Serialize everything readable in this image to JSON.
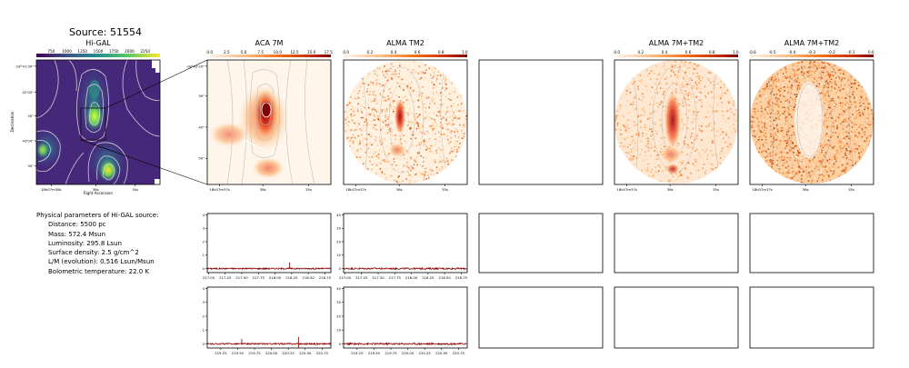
{
  "title": "Source: 51554",
  "panels": {
    "higal": "Hi-GAL",
    "aca": "ACA 7M",
    "tm2": "ALMA TM2",
    "mix": "ALMA 7M+TM2",
    "diff": "ALMA 7M+TM2"
  },
  "colorbars": {
    "higal": [
      "750",
      "1000",
      "1250",
      "1500",
      "1750",
      "2000",
      "2250"
    ],
    "aca": [
      "0.0",
      "2.5",
      "5.0",
      "7.5",
      "10.0",
      "12.5",
      "15.0",
      "17.5"
    ],
    "tm2": [
      "0.0",
      "0.2",
      "0.4",
      "0.6",
      "0.8",
      "1.0"
    ],
    "mix": [
      "0.0",
      "0.2",
      "0.4",
      "0.6",
      "0.8",
      "1.0"
    ],
    "diff": [
      "-0.6",
      "-0.5",
      "-0.4",
      "-0.3",
      "-0.2",
      "-0.1",
      "0.0"
    ]
  },
  "axes": {
    "higal_y_ticks": [
      "-18°41'30\"",
      "42'00\"",
      "30\"",
      "43'00\"",
      "30\""
    ],
    "higal_x_ticks": [
      "18h07m38s",
      "36s",
      "34s"
    ],
    "higal_xlabel": "Right Ascension",
    "higal_ylabel": "Declination",
    "aca_y_ticks": [
      "-18°42'20\"",
      "30\"",
      "40\"",
      "50\""
    ],
    "zoom_x_ticks": [
      "18h07m37s",
      "36s",
      "35s"
    ]
  },
  "params": {
    "heading": "Physical parameters of Hi-GAL source:",
    "lines": [
      "Distance: 5500 pc",
      "Mass: 572.4 Msun",
      "Luminosity: 295.8 Lsun",
      "Surface density: 2.5 g/cm^2",
      "L/M (evolution): 0.516 Lsun/Msun",
      "Bolometric temperature: 22.0 K"
    ]
  },
  "colors": {
    "spectrum_line": "#8b0000",
    "higal_low": "#440154",
    "higal_high": "#fde725",
    "heat_low": "#fff5eb",
    "heat_high": "#7f0000"
  },
  "chart_data": [
    {
      "type": "line",
      "panel": "spectrum-row1-col1",
      "x_ticks": [
        "217.00",
        "217.25",
        "217.50",
        "217.75",
        "218.00",
        "218.25",
        "218.50",
        "218.75"
      ],
      "y_ticks": [
        "0",
        "1",
        "2",
        "3",
        "4"
      ],
      "xlim": [
        216.98,
        218.84
      ],
      "ylim": [
        -0.3,
        4.1
      ],
      "spikes": [
        {
          "x": 218.22,
          "y": 0.45
        }
      ],
      "baseline_noise": 0.05
    },
    {
      "type": "line",
      "panel": "spectrum-row1-col2",
      "x_ticks": [
        "217.00",
        "217.25",
        "217.50",
        "217.75",
        "218.00",
        "218.25",
        "218.50",
        "218.75"
      ],
      "y_ticks": [
        "0",
        "10",
        "20",
        "30",
        "40"
      ],
      "xlim": [
        216.98,
        218.84
      ],
      "ylim": [
        -3,
        41
      ],
      "spikes": [],
      "baseline_noise": 0.6
    },
    {
      "type": "line",
      "panel": "spectrum-row2-col1",
      "x_ticks": [
        "219.25",
        "219.50",
        "219.75",
        "220.00",
        "220.25",
        "220.50",
        "220.75"
      ],
      "y_ticks": [
        "0",
        "1",
        "2",
        "3",
        "4"
      ],
      "xlim": [
        219.05,
        220.88
      ],
      "ylim": [
        -0.3,
        4.1
      ],
      "spikes": [
        {
          "x": 219.56,
          "y": 0.35
        },
        {
          "x": 220.4,
          "y": 0.5
        },
        {
          "x": 220.4,
          "y": -0.28
        }
      ],
      "baseline_noise": 0.05
    },
    {
      "type": "line",
      "panel": "spectrum-row2-col2",
      "x_ticks": [
        "219.25",
        "219.50",
        "219.75",
        "220.00",
        "220.25",
        "220.50",
        "220.75"
      ],
      "y_ticks": [
        "0",
        "10",
        "20",
        "30",
        "40"
      ],
      "xlim": [
        219.05,
        220.88
      ],
      "ylim": [
        -3,
        41
      ],
      "spikes": [],
      "baseline_noise": 0.6
    }
  ]
}
